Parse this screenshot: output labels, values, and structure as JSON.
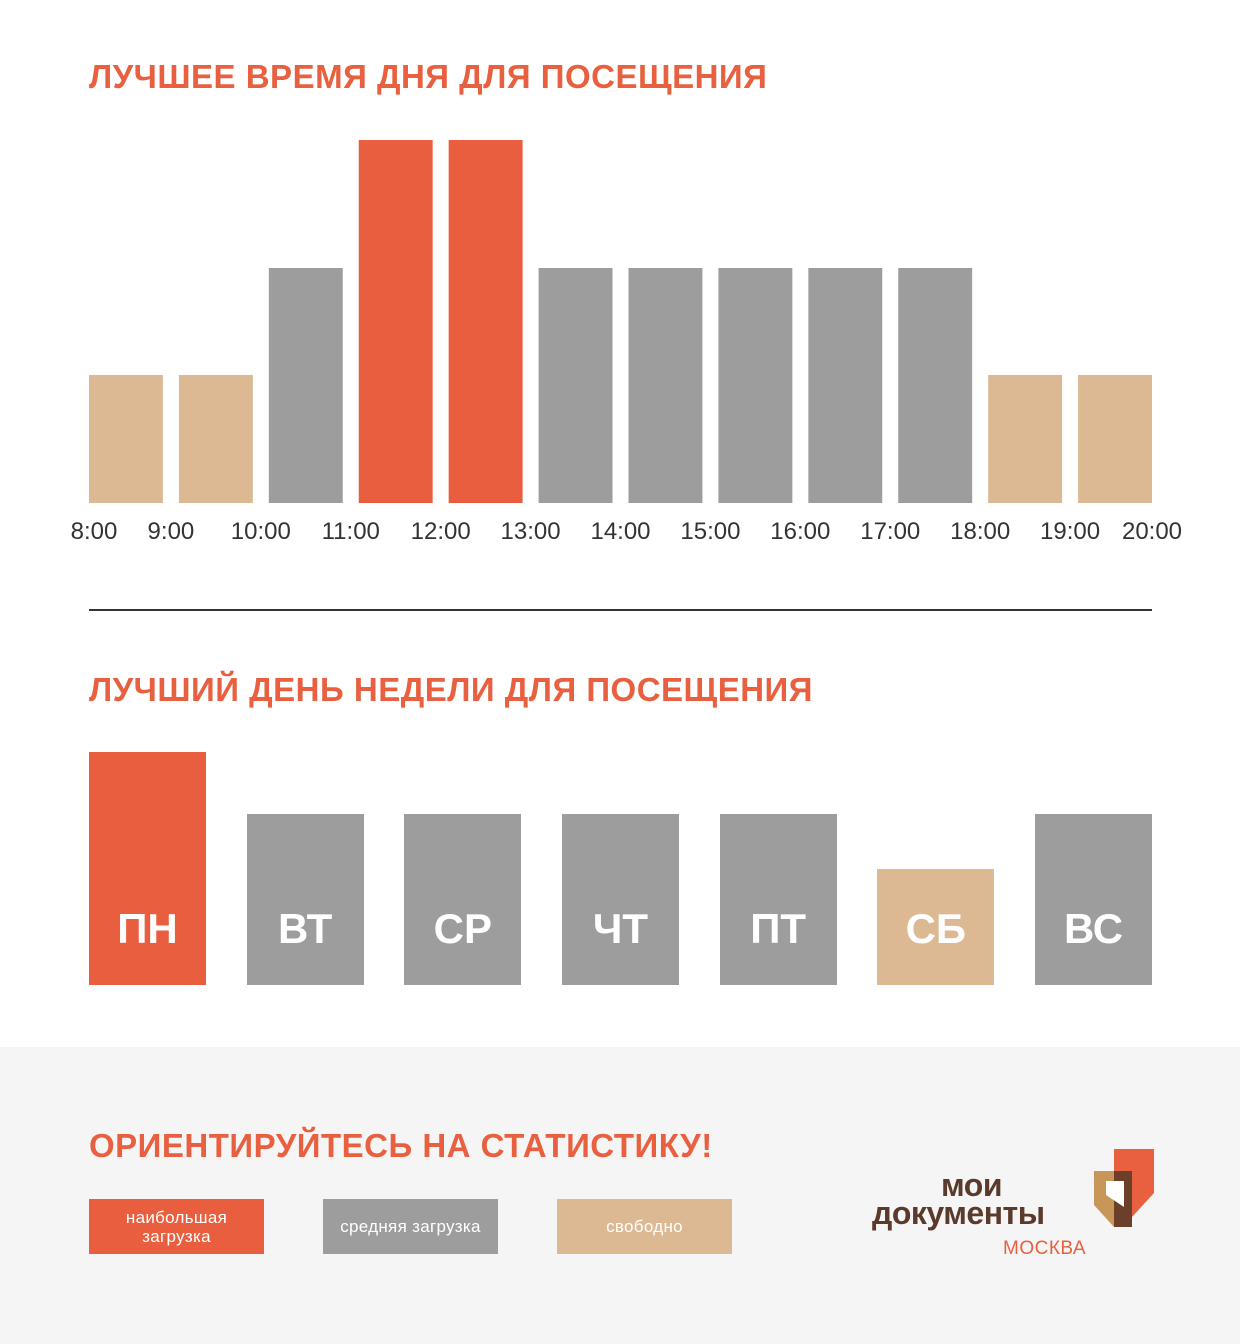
{
  "chart_data": [
    {
      "type": "bar",
      "title": "ЛУЧШЕЕ ВРЕМЯ ДНЯ ДЛЯ ПОСЕЩЕНИЯ",
      "x_tick_labels": [
        "8:00",
        "9:00",
        "10:00",
        "11:00",
        "12:00",
        "13:00",
        "14:00",
        "15:00",
        "16:00",
        "17:00",
        "18:00",
        "19:00",
        "20:00"
      ],
      "bars": [
        {
          "level": 1,
          "status": "free"
        },
        {
          "level": 1,
          "status": "free"
        },
        {
          "level": 2,
          "status": "medium"
        },
        {
          "level": 3,
          "status": "peak"
        },
        {
          "level": 3,
          "status": "peak"
        },
        {
          "level": 2,
          "status": "medium"
        },
        {
          "level": 2,
          "status": "medium"
        },
        {
          "level": 2,
          "status": "medium"
        },
        {
          "level": 2,
          "status": "medium"
        },
        {
          "level": 2,
          "status": "medium"
        },
        {
          "level": 1,
          "status": "free"
        },
        {
          "level": 1,
          "status": "free"
        }
      ],
      "ylim": [
        0,
        3
      ],
      "grid": false
    },
    {
      "type": "bar",
      "title": "ЛУЧШИЙ ДЕНЬ НЕДЕЛИ ДЛЯ ПОСЕЩЕНИЯ",
      "categories": [
        "ПН",
        "ВТ",
        "СР",
        "ЧТ",
        "ПТ",
        "СБ",
        "ВС"
      ],
      "levels": [
        3,
        2,
        2,
        2,
        2,
        1,
        2
      ],
      "statuses": [
        "peak",
        "medium",
        "medium",
        "medium",
        "medium",
        "free",
        "medium"
      ],
      "ylim": [
        0,
        3
      ],
      "grid": false
    }
  ],
  "colors": {
    "peak": "#e95e3e",
    "medium": "#9d9d9d",
    "free": "#dcb992",
    "accent": "#e8603f",
    "divider": "#333333"
  },
  "footer": {
    "title": "ОРИЕНТИРУЙТЕСЬ НА СТАТИСТИКУ!",
    "legend": [
      {
        "status": "peak",
        "label": "наибольшая загрузка"
      },
      {
        "status": "medium",
        "label": "средняя загрузка"
      },
      {
        "status": "free",
        "label": "свободно"
      }
    ]
  },
  "logo": {
    "line1": "мои",
    "line2": "документы",
    "city": "МОСКВА",
    "icon": "mfc-emblem-icon"
  }
}
